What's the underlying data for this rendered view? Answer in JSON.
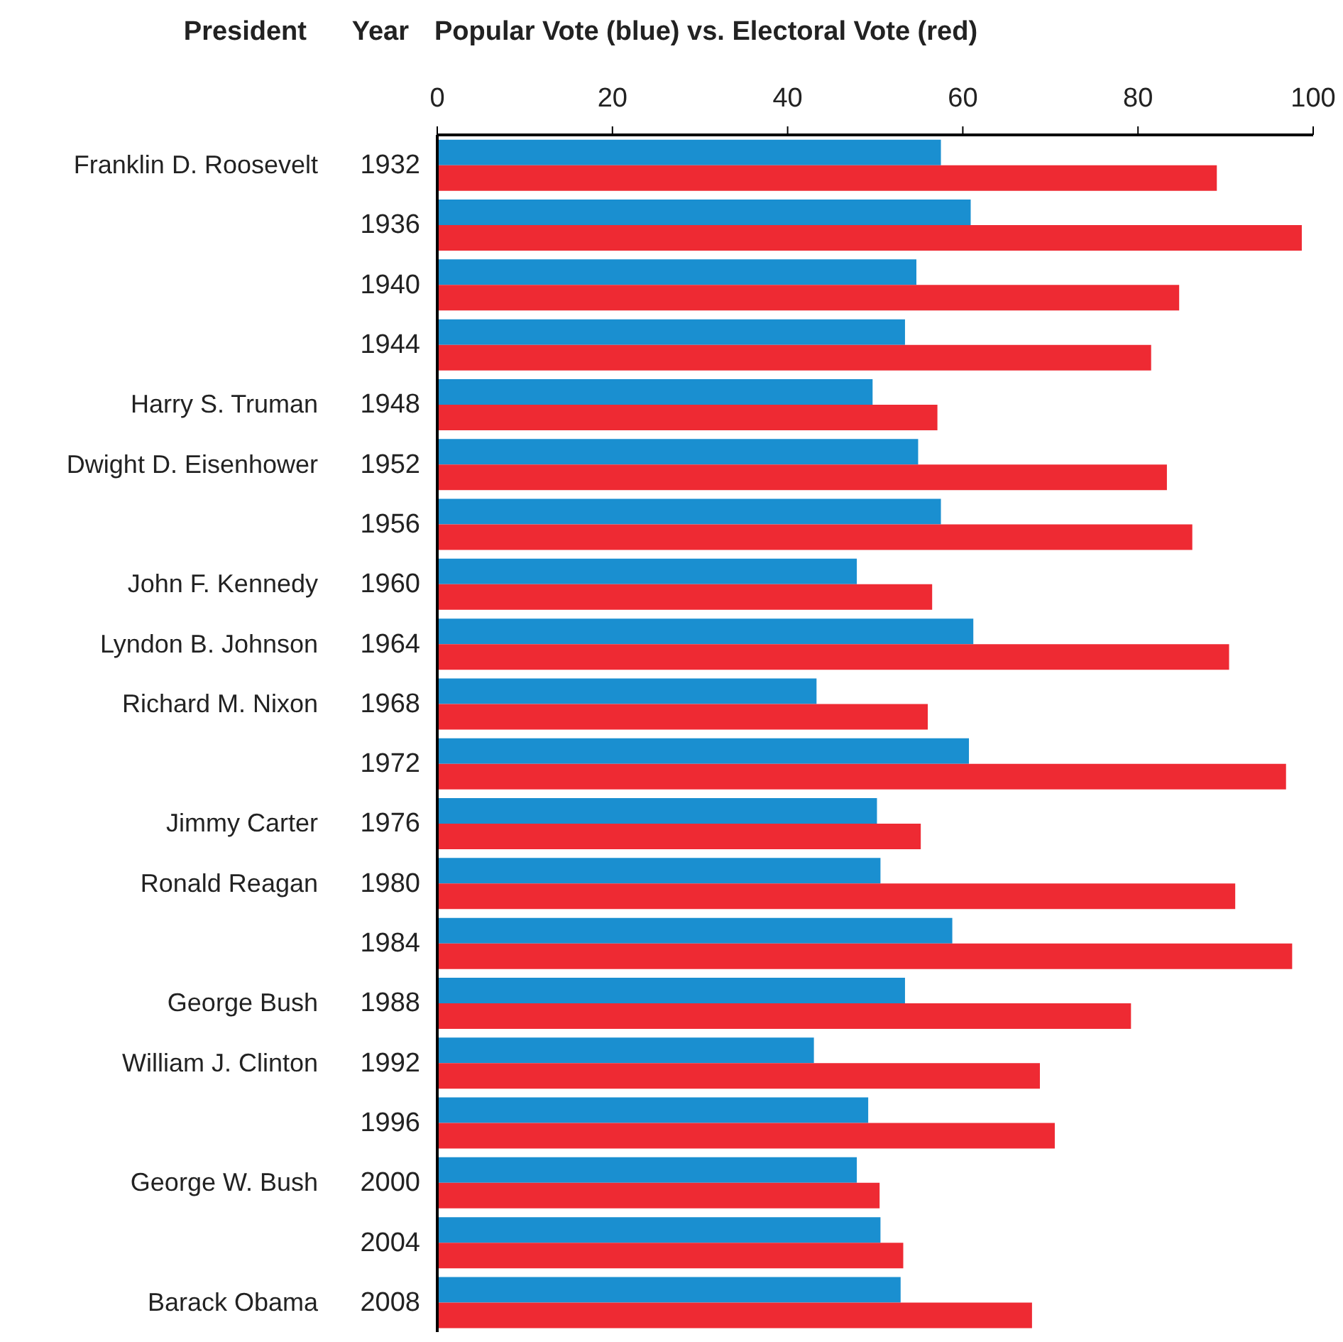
{
  "chart_data": {
    "type": "bar",
    "orientation": "horizontal",
    "title": "Popular Vote (blue) vs. Electoral Vote (red)",
    "ylabel": "Year",
    "categories": [
      "1932",
      "1936",
      "1940",
      "1944",
      "1948",
      "1952",
      "1956",
      "1960",
      "1964",
      "1968",
      "1972",
      "1976",
      "1980",
      "1984",
      "1988",
      "1992",
      "1996",
      "2000",
      "2004",
      "2008"
    ],
    "series": [
      {
        "color": "#1a8fd0",
        "values": [
          57.5,
          60.9,
          54.7,
          53.4,
          49.7,
          54.9,
          57.5,
          47.9,
          61.2,
          43.3,
          60.7,
          50.2,
          50.6,
          58.8,
          53.4,
          43.0,
          49.2,
          47.9,
          50.6,
          52.9
        ]
      },
      {
        "color": "#ee2a33",
        "values": [
          89.0,
          98.7,
          84.7,
          81.5,
          57.1,
          83.3,
          86.2,
          56.5,
          90.4,
          56.0,
          96.9,
          55.2,
          91.1,
          97.6,
          79.2,
          68.8,
          70.5,
          50.5,
          53.2,
          67.9
        ]
      }
    ],
    "xlim": [
      0,
      100
    ],
    "xticks": [
      0,
      20,
      40,
      60,
      80,
      100
    ],
    "grid": false,
    "legend": false,
    "y2_categories": [
      "Franklin D. Roosevelt",
      null,
      null,
      null,
      "Harry S. Truman",
      "Dwight D. Eisenhower",
      null,
      "John F. Kennedy",
      "Lyndon B. Johnson",
      "Richard M. Nixon",
      null,
      "Jimmy Carter",
      "Ronald Reagan",
      null,
      "George Bush",
      "William J. Clinton",
      null,
      "George W. Bush",
      null,
      "Barack Obama"
    ],
    "annotations": [
      "President"
    ]
  }
}
